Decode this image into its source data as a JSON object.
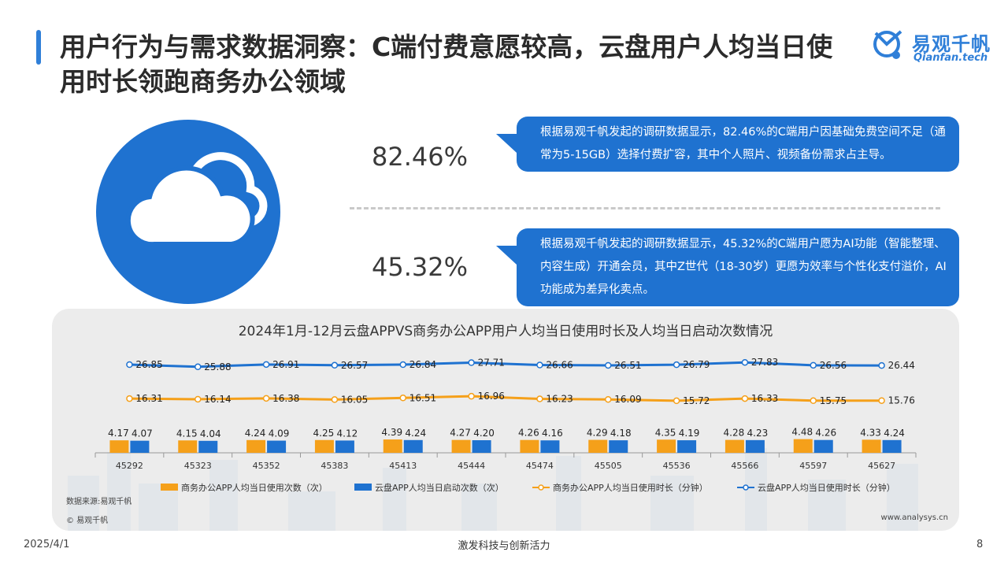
{
  "header": {
    "title": "用户行为与需求数据洞察：C端付费意愿较高，云盘用户人均当日使用时长领跑商务办公领域"
  },
  "logo": {
    "name": "易观千帆",
    "domain": "Qianfan.tech"
  },
  "stats": [
    {
      "value": "82.46%",
      "text": "根据易观千帆发起的调研数据显示，82.46%的C端用户因基础免费空间不足（通常为5-15GB）选择付费扩容，其中个人照片、视频备份需求占主导。"
    },
    {
      "value": "45.32%",
      "text": "根据易观千帆发起的调研数据显示，45.32%的C端用户愿为AI功能（智能整理、内容生成）开通会员，其中Z世代（18-30岁）更愿为效率与个性化支付溢价，AI功能成为差异化卖点。"
    }
  ],
  "chart_data": {
    "type": "bar",
    "title": "2024年1月-12月云盘APPVS商务办公APP用户人均当日使用时长及人均当日启动次数情况",
    "categories": [
      "45292",
      "45323",
      "45352",
      "45383",
      "45413",
      "45444",
      "45474",
      "45505",
      "45536",
      "45566",
      "45597",
      "45627"
    ],
    "series": [
      {
        "name": "商务办公APP人均当日使用次数（次）",
        "kind": "bar",
        "color": "#f5a01a",
        "values": [
          4.17,
          4.15,
          4.24,
          4.25,
          4.39,
          4.27,
          4.26,
          4.29,
          4.35,
          4.28,
          4.48,
          4.33
        ]
      },
      {
        "name": "云盘APP人均当日启动次数（次）",
        "kind": "bar",
        "color": "#1f72d0",
        "values": [
          4.07,
          4.04,
          4.09,
          4.12,
          4.24,
          4.2,
          4.16,
          4.18,
          4.19,
          4.23,
          4.26,
          4.24
        ]
      },
      {
        "name": "商务办公APP人均当日使用时长（分钟）",
        "kind": "line",
        "color": "#f5a01a",
        "values": [
          16.31,
          16.14,
          16.38,
          16.05,
          16.51,
          16.96,
          16.23,
          16.09,
          15.72,
          16.33,
          15.75,
          15.76
        ]
      },
      {
        "name": "云盘APP人均当日使用时长（分钟）",
        "kind": "line",
        "color": "#1f72d0",
        "values": [
          26.85,
          25.88,
          26.91,
          26.57,
          26.84,
          27.71,
          26.66,
          26.51,
          26.79,
          27.83,
          26.56,
          26.44
        ]
      }
    ],
    "legend_position": "bottom",
    "source": "数据来源:易观千帆"
  },
  "panel": {
    "copyright": "© 易观千帆",
    "website": "www.analysys.cn"
  },
  "footer": {
    "date": "2025/4/1",
    "slogan": "激发科技与创新活力",
    "page": "8"
  }
}
